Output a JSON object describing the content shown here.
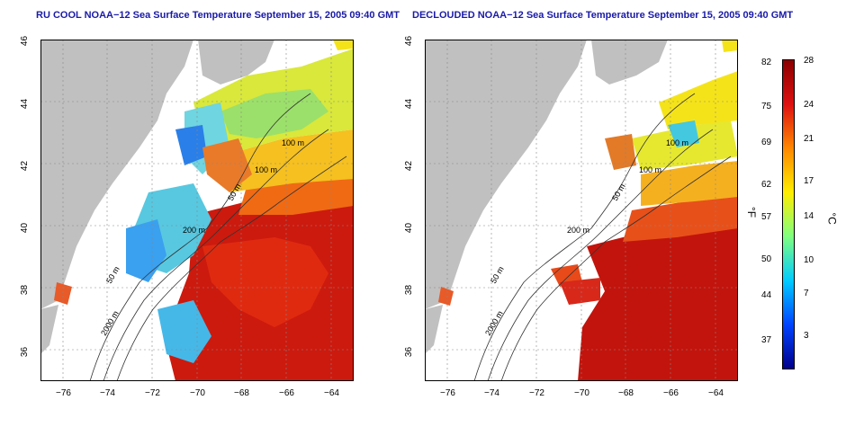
{
  "panels": [
    {
      "title": "RU COOL NOAA−12 Sea Surface Temperature September 15, 2005 09:40 GMT",
      "contours": [
        "100 m",
        "100 m",
        "50 m",
        "200 m",
        "50 m",
        "2000 m"
      ]
    },
    {
      "title": "DECLOUDED NOAA−12 Sea Surface Temperature September 15, 2005 09:40 GMT",
      "contours": [
        "100 m",
        "100 m",
        "50 m",
        "200 m",
        "50 m",
        "2000 m"
      ]
    }
  ],
  "axes": {
    "x_ticks": [
      "−76",
      "−74",
      "−72",
      "−70",
      "−68",
      "−66",
      "−64"
    ],
    "y_ticks": [
      "46",
      "44",
      "42",
      "40",
      "38",
      "36"
    ],
    "xlim": [
      -77,
      -63
    ],
    "ylim": [
      35,
      46
    ]
  },
  "colorbar": {
    "fahrenheit_ticks": [
      "82",
      "75",
      "69",
      "62",
      "57",
      "50",
      "44",
      "37"
    ],
    "celsius_ticks": [
      "28",
      "24",
      "21",
      "17",
      "14",
      "10",
      "7",
      "3"
    ],
    "fahrenheit_unit": "°F",
    "celsius_unit": "°C",
    "colors": [
      "#8b0000",
      "#dd1111",
      "#ff8800",
      "#ffee00",
      "#80ff80",
      "#00ccff",
      "#0044ff",
      "#00008b"
    ]
  }
}
